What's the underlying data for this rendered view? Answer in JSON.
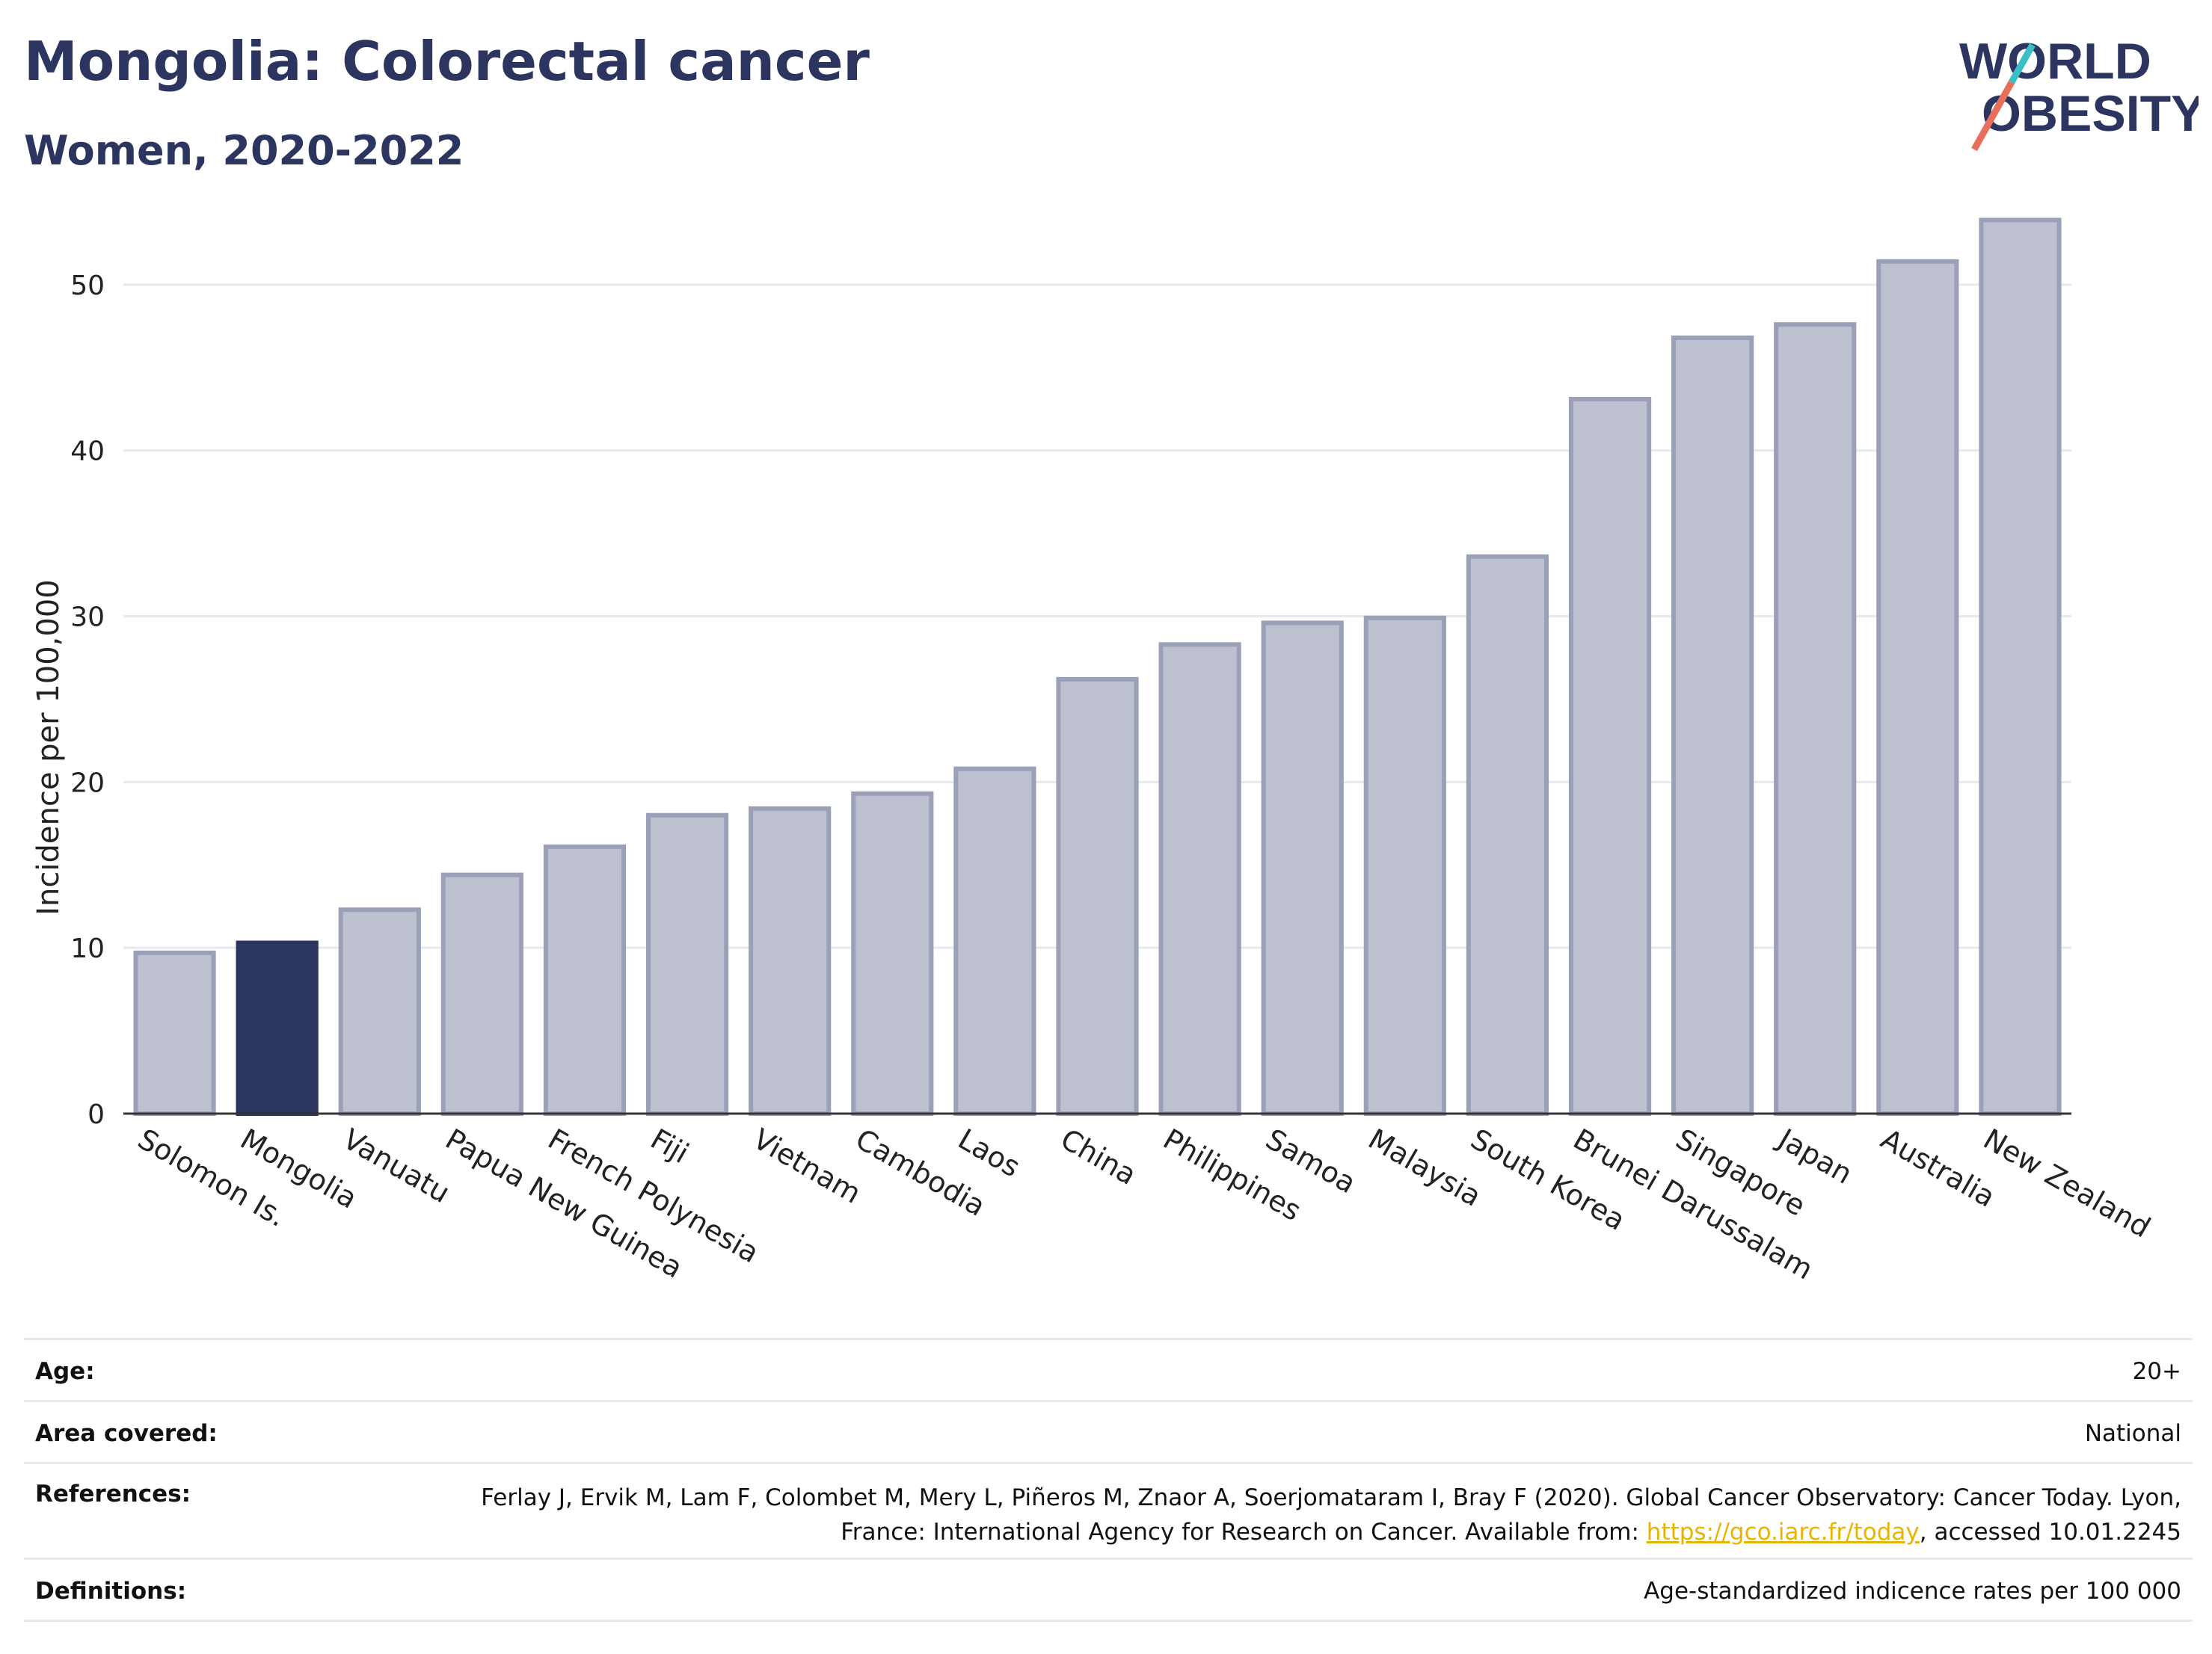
{
  "header": {
    "title": "Mongolia: Colorectal cancer",
    "subtitle": "Women, 2020-2022"
  },
  "logo": {
    "line1": "WORLD",
    "line2": "OBESITY",
    "slash_colors": [
      "#e8705a",
      "#3bbfc6"
    ]
  },
  "colors": {
    "title": "#2b3560",
    "highlight_bar": "#2b3560",
    "bar_fill": "#bcc0cf",
    "bar_stroke": "#9aa0b8",
    "grid": "#e6e9ef",
    "link": "#e8b400"
  },
  "chart_data": {
    "type": "bar",
    "ylabel": "Incidence per 100,000",
    "xlabel": "",
    "ylim": [
      0,
      55
    ],
    "yticks": [
      0,
      10,
      20,
      30,
      40,
      50
    ],
    "grid": true,
    "highlight": "Mongolia",
    "categories": [
      "Solomon Is.",
      "Mongolia",
      "Vanuatu",
      "Papua New Guinea",
      "French Polynesia",
      "Fiji",
      "Vietnam",
      "Cambodia",
      "Laos",
      "China",
      "Philippines",
      "Samoa",
      "Malaysia",
      "South Korea",
      "Brunei Darussalam",
      "Singapore",
      "Japan",
      "Australia",
      "New Zealand"
    ],
    "values": [
      9.7,
      10.3,
      12.3,
      14.4,
      16.1,
      18.0,
      18.4,
      19.3,
      20.8,
      26.2,
      28.3,
      29.6,
      29.9,
      33.6,
      43.1,
      46.8,
      47.6,
      51.4,
      53.9
    ]
  },
  "info_table": {
    "age_label": "Age:",
    "age_value": "20+",
    "area_label": "Area covered:",
    "area_value": "National",
    "references_label": "References:",
    "references_text_1": "Ferlay J, Ervik M, Lam F, Colombet M, Mery L, Piñeros M, Znaor A, Soerjomataram I, Bray F (2020). Global Cancer Observatory: Cancer Today. Lyon, France: International Agency for Research on Cancer. Available from: ",
    "references_link": "https://gco.iarc.fr/today",
    "references_text_2": ", accessed 10.01.2245",
    "definitions_label": "Definitions:",
    "definitions_value": "Age-standardized indicence rates per 100 000"
  }
}
